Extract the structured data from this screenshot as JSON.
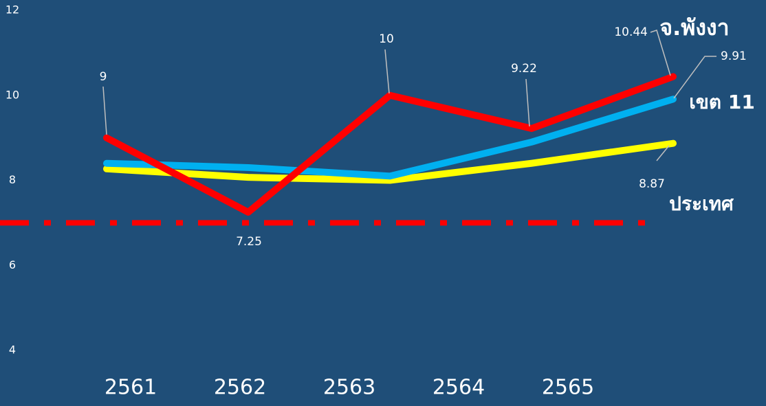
{
  "chart_data": {
    "type": "line",
    "categories": [
      "2561",
      "2562",
      "2563",
      "2564",
      "2565"
    ],
    "series": [
      {
        "name": "จ.พังงา",
        "color": "#ff0000",
        "values": [
          9,
          7.25,
          10,
          9.22,
          10.44
        ]
      },
      {
        "name": "เขต 11",
        "color": "#00b0f0",
        "values": [
          8.4,
          8.3,
          8.1,
          8.9,
          9.91
        ]
      },
      {
        "name": "ประเทศ",
        "color": "#ffff00",
        "values": [
          8.27,
          8.07,
          8.0,
          8.4,
          8.87
        ]
      }
    ],
    "reference_line": {
      "value": 7,
      "color": "#ff0000"
    },
    "ylim": [
      4,
      12
    ],
    "yticks": [
      4,
      6,
      8,
      10,
      12
    ]
  }
}
